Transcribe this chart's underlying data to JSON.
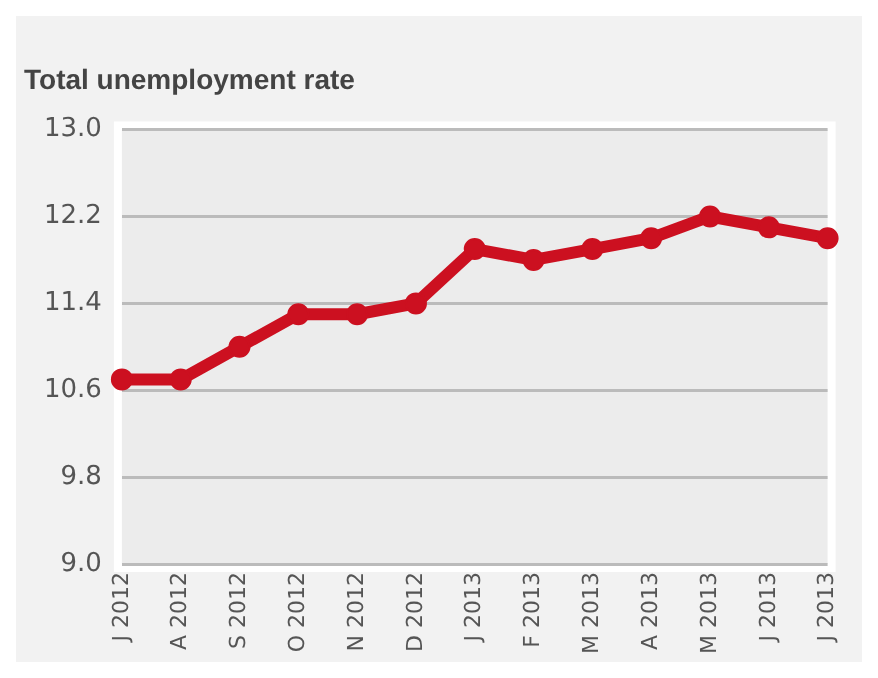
{
  "chart_data": {
    "type": "line",
    "title": "Total unemployment rate",
    "categories": [
      "J 2012",
      "A 2012",
      "S 2012",
      "O 2012",
      "N 2012",
      "D 2012",
      "J 2013",
      "F 2013",
      "M 2013",
      "A 2013",
      "M 2013",
      "J 2013",
      "J 2013"
    ],
    "series": [
      {
        "color": "#cc1020",
        "values": [
          10.7,
          10.7,
          11.0,
          11.3,
          11.3,
          11.4,
          11.9,
          11.8,
          11.9,
          12.0,
          12.2,
          12.1,
          12.0
        ]
      }
    ],
    "ylim": [
      9.0,
      13.0
    ],
    "yticks": [
      {
        "value": 9.0,
        "label": "9.0"
      },
      {
        "value": 9.8,
        "label": "9.8"
      },
      {
        "value": 10.6,
        "label": "10.6"
      },
      {
        "value": 11.4,
        "label": "11.4"
      },
      {
        "value": 12.2,
        "label": "12.2"
      },
      {
        "value": 13.0,
        "label": "13.0"
      }
    ],
    "grid": "y",
    "marker": "circle",
    "line_style": "solid",
    "legend": false
  }
}
